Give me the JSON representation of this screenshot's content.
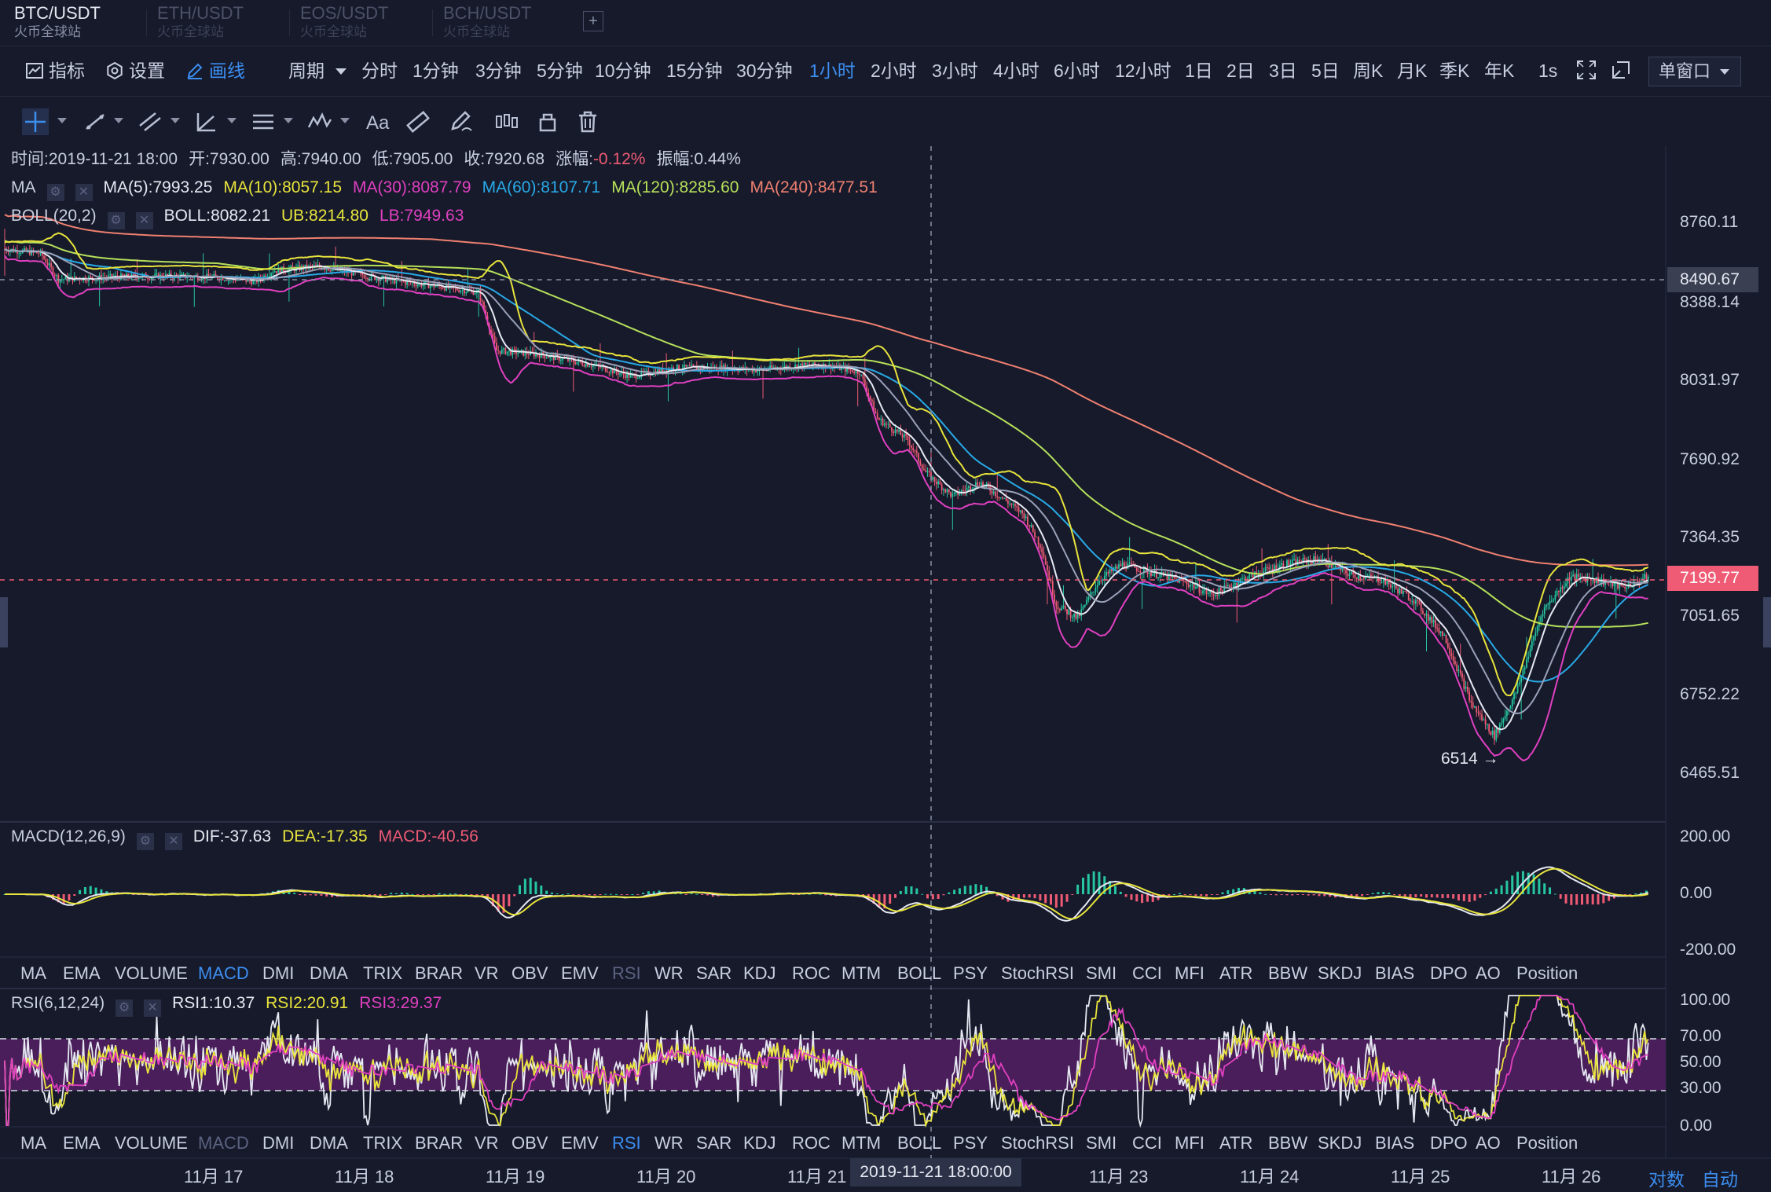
{
  "symbols": [
    {
      "pair": "BTC/USDT",
      "sub": "火币全球站"
    },
    {
      "pair": "ETH/USDT",
      "sub": "火币全球站"
    },
    {
      "pair": "EOS/USDT",
      "sub": "火币全球站"
    },
    {
      "pair": "BCH/USDT",
      "sub": "火币全球站"
    }
  ],
  "add_tab": "+",
  "toolbar": {
    "indicators": "指标",
    "settings": "设置",
    "draw": "画线",
    "period": "周期",
    "periods": [
      "分时",
      "1分钟",
      "3分钟",
      "5分钟",
      "10分钟",
      "15分钟",
      "30分钟",
      "1小时",
      "2小时",
      "3小时",
      "4小时",
      "6小时",
      "12小时",
      "1日",
      "2日",
      "3日",
      "5日",
      "周K",
      "月K",
      "季K",
      "年K"
    ],
    "selected_period": "1小时",
    "interval_1s": "1s",
    "window_mode": "单窗口"
  },
  "draw_tools": [
    "crosshair-tool",
    "trend-line-tool",
    "parallel-channel-tool",
    "angle-tool",
    "fib-tool",
    "wave-tool",
    "text-tool",
    "ruler-tool",
    "brush-tool",
    "pattern-tool",
    "lock-tool",
    "delete-tool"
  ],
  "ohlc": {
    "time": "时间:2019-11-21 18:00",
    "open": "开:7930.00",
    "high": "高:7940.00",
    "low": "低:7905.00",
    "close": "收:7920.68",
    "change_label": "涨幅:",
    "change": "-0.12%",
    "amplitude": "振幅:0.44%"
  },
  "ma": {
    "label": "MA",
    "ma5": "MA(5):7993.25",
    "ma10": "MA(10):8057.15",
    "ma30": "MA(30):8087.79",
    "ma60": "MA(60):8107.71",
    "ma120": "MA(120):8285.60",
    "ma240": "MA(240):8477.51"
  },
  "boll": {
    "label": "BOLL(20,2)",
    "mid": "BOLL:8082.21",
    "ub": "UB:8214.80",
    "lb": "LB:7949.63"
  },
  "macd": {
    "label": "MACD(12,26,9)",
    "dif": "DIF:-37.63",
    "dea": "DEA:-17.35",
    "macd": "MACD:-40.56",
    "axis": [
      "200.00",
      "0.00",
      "-200.00"
    ]
  },
  "rsi": {
    "label": "RSI(6,12,24)",
    "rsi1": "RSI1:10.37",
    "rsi2": "RSI2:20.91",
    "rsi3": "RSI3:29.37",
    "axis": [
      "100.00",
      "70.00",
      "50.00",
      "30.00",
      "0.00"
    ]
  },
  "price_axis": [
    "8760.11",
    "8388.14",
    "8031.97",
    "7690.92",
    "7364.35",
    "7051.65",
    "6752.22",
    "6465.51"
  ],
  "crosshair_price": "8490.67",
  "last_price": "7199.77",
  "low_marker": "6514 →",
  "indicator_tabs": [
    "MA",
    "EMA",
    "VOLUME",
    "MACD",
    "DMI",
    "DMA",
    "TRIX",
    "BRAR",
    "VR",
    "OBV",
    "EMV",
    "RSI",
    "WR",
    "SAR",
    "KDJ",
    "ROC",
    "MTM",
    "BOLL",
    "PSY",
    "StochRSI",
    "SMI",
    "CCI",
    "MFI",
    "ATR",
    "BBW",
    "SKDJ",
    "BIAS",
    "DPO",
    "AO",
    "Position"
  ],
  "indicator_row1_selected": "MACD",
  "indicator_row1_dim": "RSI",
  "indicator_row2_selected": "RSI",
  "indicator_row2_dim": "MACD",
  "x_axis": [
    "11月 17",
    "11月 18",
    "11月 19",
    "11月 20",
    "11月 21",
    "11月 23",
    "11月 24",
    "11月 25",
    "11月 26"
  ],
  "crosshair_time": "2019-11-21 18:00:00",
  "log_label": "对数",
  "auto_label": "自动",
  "colors": {
    "up": "#26c6a0",
    "down": "#ef5a74",
    "ma5": "#e6e9f2",
    "ma10": "#e8e43c",
    "ma30": "#e040c0",
    "ma60": "#29a9e6",
    "ma120": "#b6e05a",
    "ma240": "#f08070",
    "accent": "#3c8ef0"
  }
}
